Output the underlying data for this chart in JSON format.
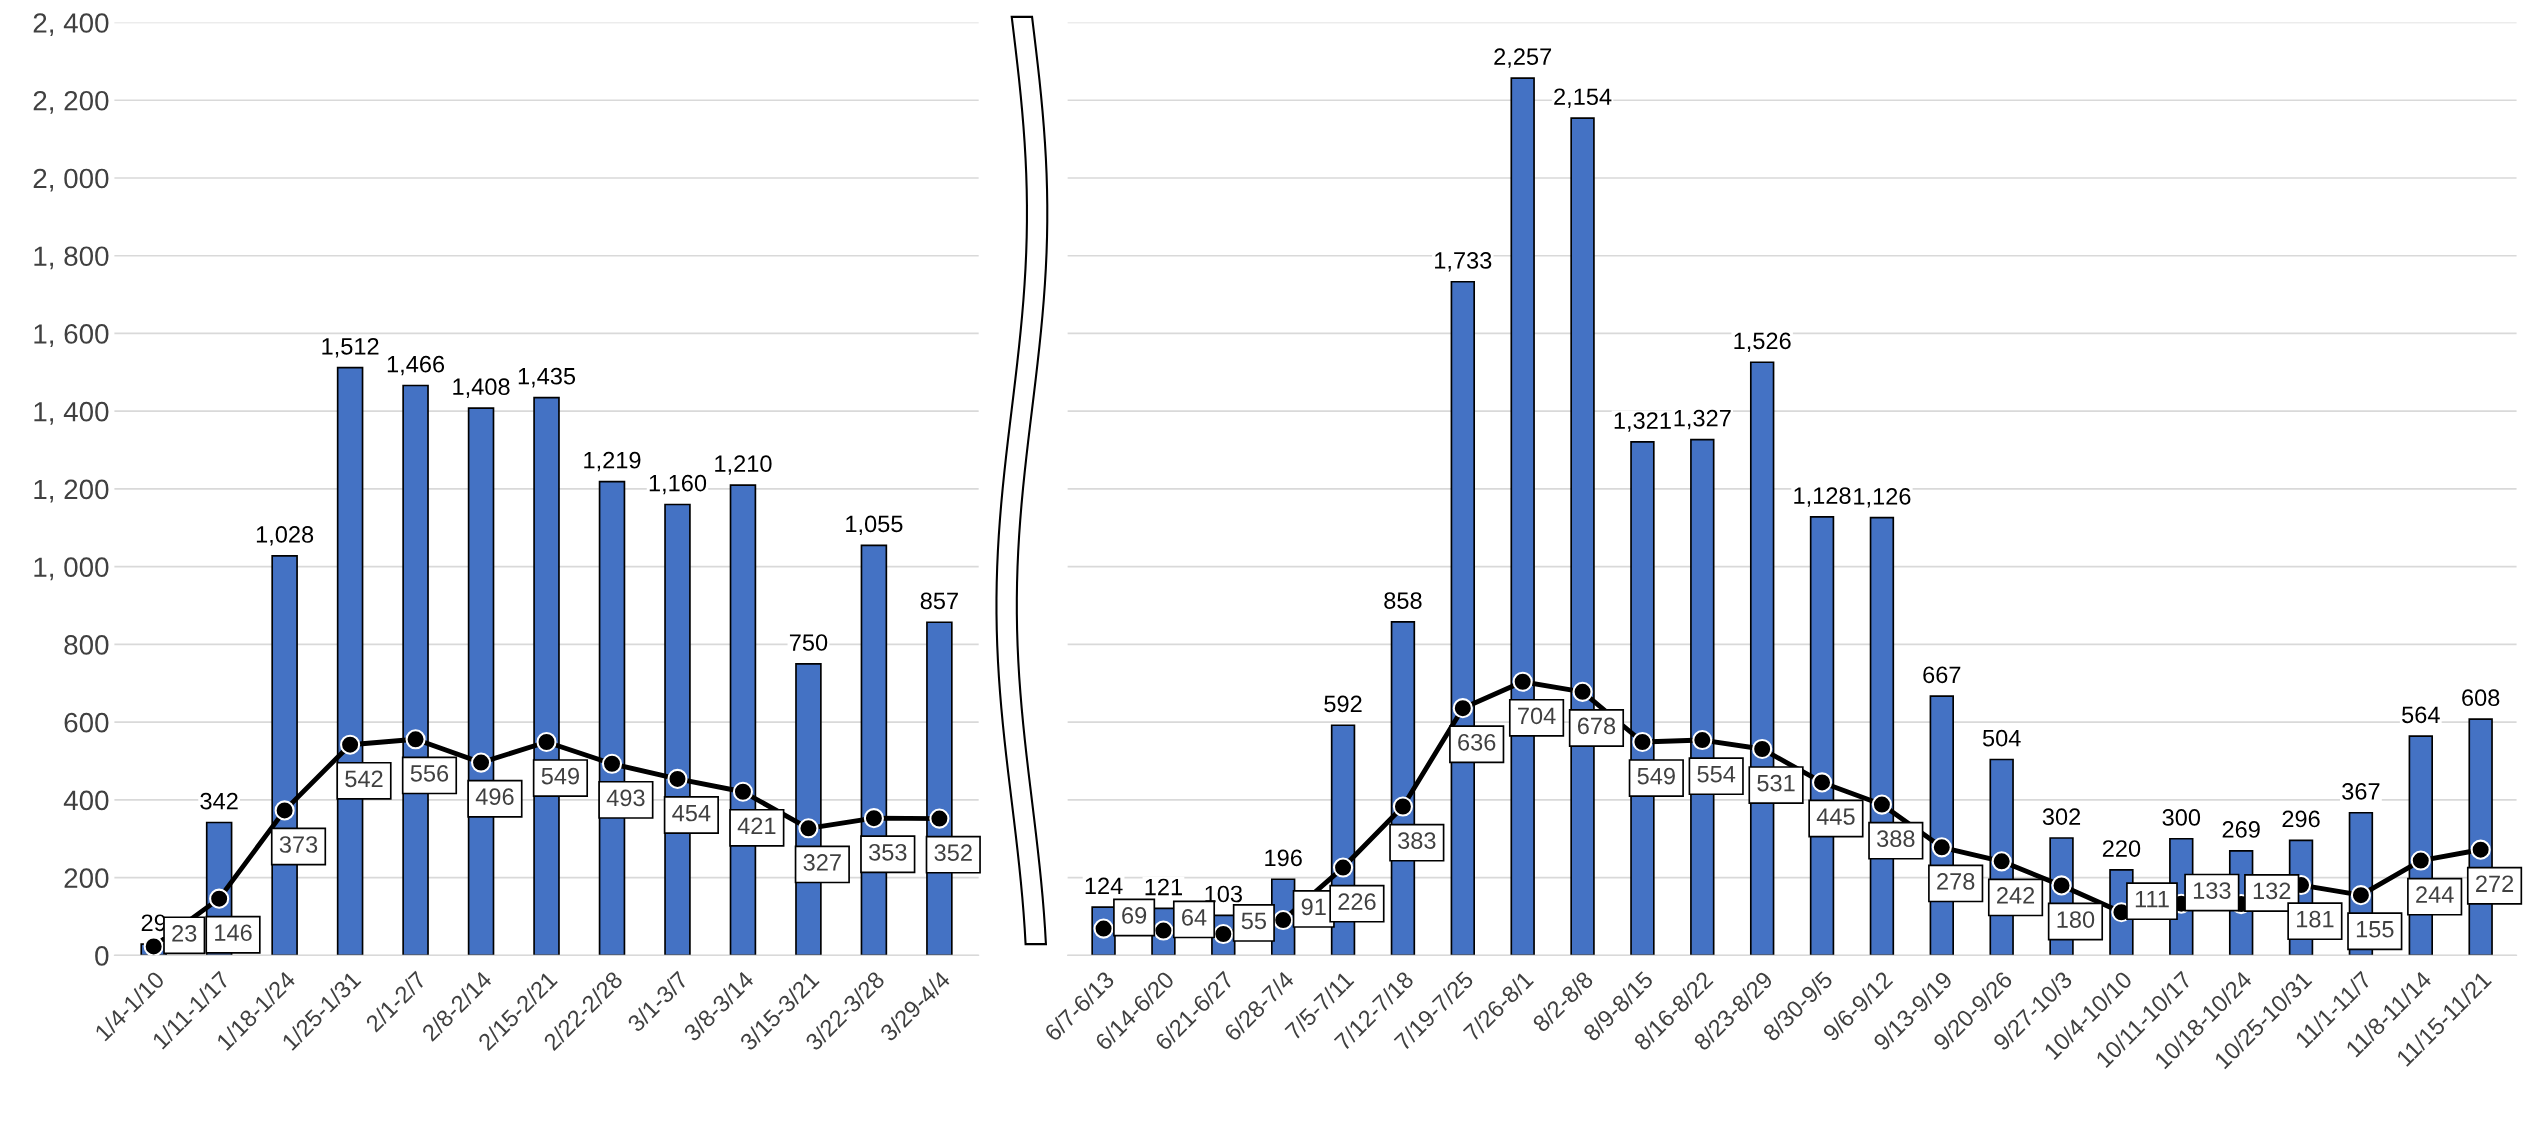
{
  "chart_data": [
    {
      "type": "bar",
      "categories": [
        "1/4-1/10",
        "1/11-1/17",
        "1/18-1/24",
        "1/25-1/31",
        "2/1-2/7",
        "2/8-2/14",
        "2/15-2/21",
        "2/22-2/28",
        "3/1-3/7",
        "3/8-3/14",
        "3/15-3/21",
        "3/22-3/28",
        "3/29-4/4"
      ],
      "series": [
        {
          "color": "#4472c4",
          "values": [
            29,
            342,
            1028,
            1512,
            1466,
            1408,
            1435,
            1219,
            1160,
            1210,
            750,
            1055,
            857
          ],
          "value_labels": [
            "29",
            "342",
            "1,028",
            "1,512",
            "1,466",
            "1,408",
            "1,435",
            "1,219",
            "1,160",
            "1,210",
            "750",
            "1,055",
            "857"
          ]
        },
        {
          "type": "line",
          "color": "#000000",
          "values": [
            23,
            146,
            373,
            542,
            556,
            496,
            549,
            493,
            454,
            421,
            327,
            353,
            352
          ],
          "value_labels": [
            "23",
            "146",
            "373",
            "542",
            "556",
            "496",
            "549",
            "493",
            "454",
            "421",
            "327",
            "353",
            "352"
          ]
        }
      ],
      "ylim": [
        0,
        2400
      ],
      "yticks": [
        0,
        200,
        400,
        600,
        800,
        {
          "value": 1000,
          "label": "1, 000"
        },
        {
          "value": 1200,
          "label": "1, 200"
        },
        {
          "value": 1400,
          "label": "1, 400"
        },
        {
          "value": 1600,
          "label": "1, 600"
        },
        {
          "value": 1800,
          "label": "1, 800"
        },
        {
          "value": 2000,
          "label": "2, 000"
        },
        {
          "value": 2200,
          "label": "2, 200"
        },
        {
          "value": 2400,
          "label": "2, 400"
        }
      ],
      "grid": "y",
      "marker": "circle",
      "line_style": "solid"
    },
    {
      "type": "bar",
      "categories": [
        "6/7-6/13",
        "6/14-6/20",
        "6/21-6/27",
        "6/28-7/4",
        "7/5-7/11",
        "7/12-7/18",
        "7/19-7/25",
        "7/26-8/1",
        "8/2-8/8",
        "8/9-8/15",
        "8/16-8/22",
        "8/23-8/29",
        "8/30-9/5",
        "9/6-9/12",
        "9/13-9/19",
        "9/20-9/26",
        "9/27-10/3",
        "10/4-10/10",
        "10/11-10/17",
        "10/18-10/24",
        "10/25-10/31",
        "11/1-11/7",
        "11/8-11/14",
        "11/15-11/21"
      ],
      "series": [
        {
          "color": "#4472c4",
          "values": [
            124,
            121,
            103,
            196,
            592,
            858,
            1733,
            2257,
            2154,
            1321,
            1327,
            1526,
            1128,
            1126,
            667,
            504,
            302,
            220,
            300,
            269,
            296,
            367,
            564,
            608
          ],
          "value_labels": [
            "124",
            "121",
            "103",
            "196",
            "592",
            "858",
            "1,733",
            "2,257",
            "2,154",
            "1,321",
            "1,327",
            "1,526",
            "1,128",
            "1,126",
            "667",
            "504",
            "302",
            "220",
            "300",
            "269",
            "296",
            "367",
            "564",
            "608"
          ]
        },
        {
          "type": "line",
          "color": "#000000",
          "values": [
            69,
            64,
            55,
            91,
            226,
            383,
            636,
            704,
            678,
            549,
            554,
            531,
            445,
            388,
            278,
            242,
            180,
            111,
            133,
            132,
            181,
            155,
            244,
            272
          ],
          "value_labels": [
            "69",
            "64",
            "55",
            "91",
            "226",
            "383",
            "636",
            "704",
            "678",
            "549",
            "554",
            "531",
            "445",
            "388",
            "278",
            "242",
            "180",
            "111",
            "133",
            "132",
            "181",
            "155",
            "244",
            "272"
          ]
        }
      ],
      "ylim": [
        0,
        2400
      ],
      "yticks": [
        {
          "value": 0,
          "label": null
        },
        {
          "value": 200,
          "label": null
        },
        {
          "value": 400,
          "label": null
        },
        {
          "value": 600,
          "label": null
        },
        {
          "value": 800,
          "label": null
        },
        {
          "value": 1000,
          "label": null
        },
        {
          "value": 1200,
          "label": null
        },
        {
          "value": 1400,
          "label": null
        },
        {
          "value": 1600,
          "label": null
        },
        {
          "value": 1800,
          "label": null
        },
        {
          "value": 2000,
          "label": null
        },
        {
          "value": 2200,
          "label": null
        },
        {
          "value": 2400,
          "label": null
        }
      ],
      "grid": "y",
      "marker": "circle",
      "line_style": "solid",
      "tick_labels": "x"
    }
  ]
}
